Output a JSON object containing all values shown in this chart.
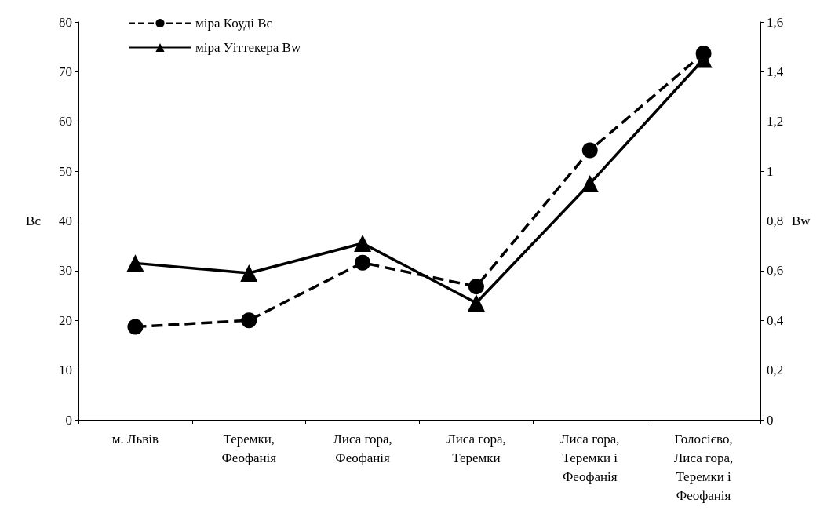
{
  "chart_data": {
    "type": "line",
    "ylabel": "Bc",
    "y2label": "Bw",
    "categories": [
      "м. Львів",
      "Теремки,\nФеофанія",
      "Лиса гора,\nФеофанія",
      "Лиса гора,\nТеремки",
      "Лиса гора,\nТеремки і\nФеофанія",
      "Голосієво,\nЛиса гора,\nТеремки і\nФеофанія"
    ],
    "series": [
      {
        "name": "міра Коуді Bc",
        "color": "#000000",
        "marker": "circle",
        "line_style": "dashed",
        "values": [
          18.7,
          20,
          31.6,
          26.8,
          54.2,
          73.7
        ]
      },
      {
        "name": "міра Уіттекера Bw",
        "color": "#000000",
        "marker": "triangle",
        "line_style": "solid",
        "axis": "y2",
        "values": [
          0.63,
          0.59,
          0.71,
          0.47,
          0.95,
          1.45
        ]
      }
    ],
    "ylim": [
      0,
      80
    ],
    "yticks": [
      0,
      10,
      20,
      30,
      40,
      50,
      60,
      70,
      80
    ],
    "y2lim": [
      0,
      1.6
    ],
    "y2ticks": [
      0,
      {
        "value": 0.2,
        "label": "0,2"
      },
      {
        "value": 0.4,
        "label": "0,4"
      },
      {
        "value": 0.6,
        "label": "0,6"
      },
      {
        "value": 0.8,
        "label": "0,8"
      },
      1,
      {
        "value": 1.2,
        "label": "1,2"
      },
      {
        "value": 1.4,
        "label": "1,4"
      },
      {
        "value": 1.6,
        "label": "1,6"
      }
    ],
    "grid": false,
    "legend": "top left"
  }
}
